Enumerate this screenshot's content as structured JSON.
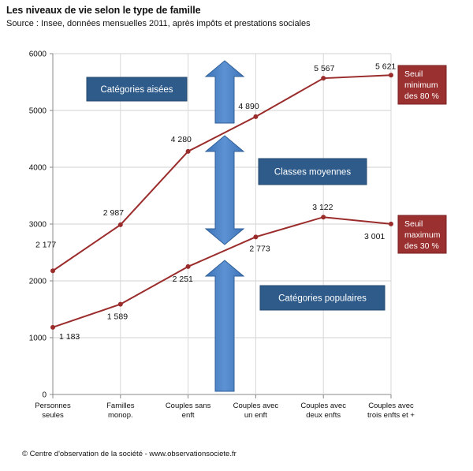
{
  "chart_data": {
    "type": "line",
    "title": "Les niveaux de vie selon le type de famille",
    "subtitle": "Source : Insee, données mensuelles 2011, après impôts et prestations sociales",
    "categories": [
      [
        "Personnes",
        "seules"
      ],
      [
        "Familles",
        "monop."
      ],
      [
        "Couples sans",
        "enft"
      ],
      [
        "Couples avec",
        "un enft"
      ],
      [
        "Couples avec",
        "deux enfts"
      ],
      [
        "Couples avec",
        "trois enfts et +"
      ]
    ],
    "series": [
      {
        "values": [
          2177,
          2987,
          4280,
          4890,
          5567,
          5621
        ],
        "labels": [
          "2 177",
          "2 987",
          "4 280",
          "4 890",
          "5 567",
          "5 621"
        ]
      },
      {
        "values": [
          1183,
          1589,
          2251,
          2773,
          3122,
          3001
        ],
        "labels": [
          "1 183",
          "1 589",
          "2 251",
          "2 773",
          "3 122",
          "3 001"
        ]
      }
    ],
    "ylim": [
      0,
      6000
    ],
    "yticks": [
      0,
      1000,
      2000,
      3000,
      4000,
      5000,
      6000
    ],
    "grid": "y",
    "line_color": "#9b2c2c",
    "box_color": "#2e5b8a",
    "seuil_color": "#9b3030",
    "annotations": {
      "aisees": "Catégories aisées",
      "moyennes": "Classes moyennes",
      "populaires": "Catégories populaires",
      "seuil_min": [
        "Seuil",
        "minimum",
        "des  80 %"
      ],
      "seuil_max": [
        "Seuil",
        "maximum",
        "des 30 %"
      ]
    }
  },
  "footer": "© Centre d'observation de la  société - www.observationsociete.fr"
}
